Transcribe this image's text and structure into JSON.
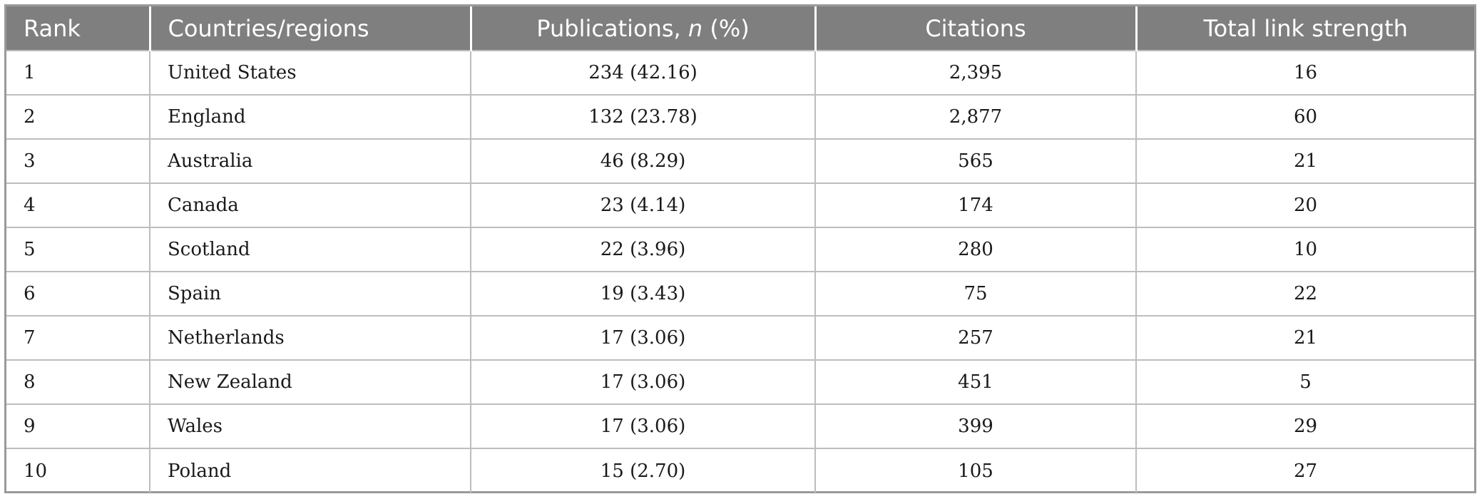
{
  "table": {
    "headers": {
      "rank": "Rank",
      "country": "Countries/regions",
      "publications_prefix": "Publications, ",
      "publications_n": "n",
      "publications_suffix": " (%)",
      "citations": "Citations",
      "total_link_strength": "Total link strength"
    },
    "rows": [
      {
        "rank": "1",
        "country": "United States",
        "publications": "234 (42.16)",
        "citations": "2,395",
        "tls": "16"
      },
      {
        "rank": "2",
        "country": "England",
        "publications": "132 (23.78)",
        "citations": "2,877",
        "tls": "60"
      },
      {
        "rank": "3",
        "country": "Australia",
        "publications": "46 (8.29)",
        "citations": "565",
        "tls": "21"
      },
      {
        "rank": "4",
        "country": "Canada",
        "publications": "23 (4.14)",
        "citations": "174",
        "tls": "20"
      },
      {
        "rank": "5",
        "country": "Scotland",
        "publications": "22 (3.96)",
        "citations": "280",
        "tls": "10"
      },
      {
        "rank": "6",
        "country": "Spain",
        "publications": "19 (3.43)",
        "citations": "75",
        "tls": "22"
      },
      {
        "rank": "7",
        "country": "Netherlands",
        "publications": "17 (3.06)",
        "citations": "257",
        "tls": "21"
      },
      {
        "rank": "8",
        "country": "New Zealand",
        "publications": "17 (3.06)",
        "citations": "451",
        "tls": "5"
      },
      {
        "rank": "9",
        "country": "Wales",
        "publications": "17 (3.06)",
        "citations": "399",
        "tls": "29"
      },
      {
        "rank": "10",
        "country": "Poland",
        "publications": "15 (2.70)",
        "citations": "105",
        "tls": "27"
      }
    ]
  }
}
